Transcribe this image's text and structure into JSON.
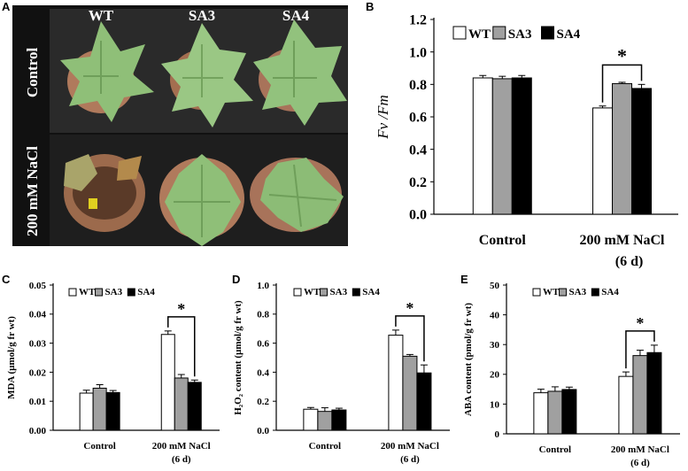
{
  "figure": {
    "panel_letters": [
      "A",
      "B",
      "C",
      "D",
      "E"
    ],
    "photo": {
      "genotypes": [
        "WT",
        "SA3",
        "SA4"
      ],
      "rows": [
        "Control",
        "200 mM NaCl"
      ]
    }
  },
  "colors": {
    "WT": "#ffffff",
    "SA3": "#a0a0a0",
    "SA4": "#000000",
    "photo_bg": "#111111",
    "leaf": "#8fbf78",
    "pot": "#b07a5c"
  },
  "chart_data": [
    {
      "id": "B",
      "type": "bar",
      "categories": [
        "Control",
        "200 mM NaCl"
      ],
      "category_sub": [
        "",
        "(6 d)"
      ],
      "series": [
        {
          "name": "WT",
          "values": [
            0.84,
            0.655
          ],
          "errors": [
            0.015,
            0.012
          ]
        },
        {
          "name": "SA3",
          "values": [
            0.835,
            0.805
          ],
          "errors": [
            0.015,
            0.008
          ]
        },
        {
          "name": "SA4",
          "values": [
            0.84,
            0.775
          ],
          "errors": [
            0.015,
            0.025
          ]
        }
      ],
      "ylabel": "Fv /Fm",
      "ylim": [
        0,
        1.2
      ],
      "yticks": [
        "0.0",
        "0.2",
        "0.4",
        "0.6",
        "0.8",
        "1.0",
        "1.2"
      ],
      "significance": "*",
      "legend": "top"
    },
    {
      "id": "C",
      "type": "bar",
      "categories": [
        "Control",
        "200 mM NaCl"
      ],
      "category_sub": [
        "",
        "(6 d)"
      ],
      "series": [
        {
          "name": "WT",
          "values": [
            0.0128,
            0.033
          ],
          "errors": [
            0.001,
            0.0012
          ]
        },
        {
          "name": "SA3",
          "values": [
            0.0145,
            0.018
          ],
          "errors": [
            0.0012,
            0.0012
          ]
        },
        {
          "name": "SA4",
          "values": [
            0.013,
            0.0165
          ],
          "errors": [
            0.0007,
            0.0008
          ]
        }
      ],
      "ylabel": "MDA (µmol/g fr wt)",
      "ylim": [
        0,
        0.05
      ],
      "yticks": [
        "0.00",
        "0.01",
        "0.02",
        "0.03",
        "0.04",
        "0.05"
      ],
      "significance": "*",
      "legend": "top"
    },
    {
      "id": "D",
      "type": "bar",
      "categories": [
        "Control",
        "200 mM NaCl"
      ],
      "category_sub": [
        "",
        "(6 d)"
      ],
      "series": [
        {
          "name": "WT",
          "values": [
            0.145,
            0.655
          ],
          "errors": [
            0.012,
            0.035
          ]
        },
        {
          "name": "SA3",
          "values": [
            0.13,
            0.51
          ],
          "errors": [
            0.025,
            0.012
          ]
        },
        {
          "name": "SA4",
          "values": [
            0.14,
            0.395
          ],
          "errors": [
            0.012,
            0.055
          ]
        }
      ],
      "ylabel": "H₂O₂ content (µmol/g fr wt)",
      "ylim": [
        0,
        1.0
      ],
      "yticks": [
        "0.0",
        "0.2",
        "0.4",
        "0.6",
        "0.8",
        "1.0"
      ],
      "significance": "*",
      "legend": "top"
    },
    {
      "id": "E",
      "type": "bar",
      "categories": [
        "Control",
        "200 mM NaCl"
      ],
      "category_sub": [
        "",
        "(6 d)"
      ],
      "series": [
        {
          "name": "WT",
          "values": [
            13.8,
            19.3
          ],
          "errors": [
            1.2,
            1.5
          ]
        },
        {
          "name": "SA3",
          "values": [
            14.3,
            26.3
          ],
          "errors": [
            1.5,
            1.8
          ]
        },
        {
          "name": "SA4",
          "values": [
            14.9,
            27.3
          ],
          "errors": [
            0.8,
            2.5
          ]
        }
      ],
      "ylabel": "ABA content (pmol/g fr wt)",
      "ylim": [
        0,
        50
      ],
      "yticks": [
        "0",
        "10",
        "20",
        "30",
        "40",
        "50"
      ],
      "significance": "*",
      "legend": "top"
    }
  ]
}
